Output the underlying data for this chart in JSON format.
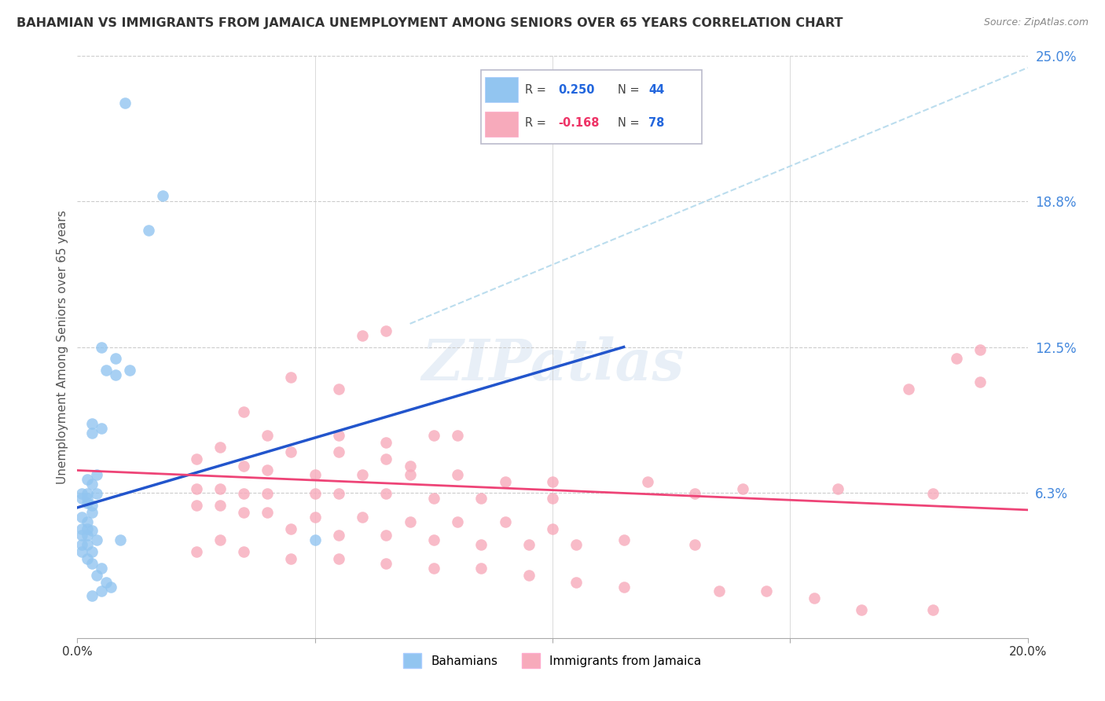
{
  "title": "BAHAMIAN VS IMMIGRANTS FROM JAMAICA UNEMPLOYMENT AMONG SENIORS OVER 65 YEARS CORRELATION CHART",
  "source": "Source: ZipAtlas.com",
  "ylabel": "Unemployment Among Seniors over 65 years",
  "xlim": [
    0.0,
    0.2
  ],
  "ylim": [
    0.0,
    0.25
  ],
  "yticks": [
    0.0,
    0.0625,
    0.125,
    0.1875,
    0.25
  ],
  "ytick_labels": [
    "",
    "6.3%",
    "12.5%",
    "18.8%",
    "25.0%"
  ],
  "xticks": [
    0.0,
    0.05,
    0.1,
    0.15,
    0.2
  ],
  "xtick_labels": [
    "0.0%",
    "",
    "",
    "",
    "20.0%"
  ],
  "bahamian_color": "#92C5F0",
  "jamaica_color": "#F7AABB",
  "trend_blue": "#2255CC",
  "trend_pink": "#EE4477",
  "trend_dashed_color": "#BBDDEE",
  "blue_line_x": [
    0.0,
    0.115
  ],
  "blue_line_y": [
    0.056,
    0.125
  ],
  "dashed_line_x": [
    0.07,
    0.2
  ],
  "dashed_line_y": [
    0.135,
    0.245
  ],
  "pink_line_x": [
    0.0,
    0.2
  ],
  "pink_line_y": [
    0.072,
    0.055
  ],
  "watermark_text": "ZIPatlas",
  "R_blue": "0.250",
  "N_blue": "44",
  "R_pink": "-0.168",
  "N_pink": "78",
  "bahamian_points": [
    [
      0.01,
      0.23
    ],
    [
      0.005,
      0.125
    ],
    [
      0.008,
      0.12
    ],
    [
      0.015,
      0.175
    ],
    [
      0.018,
      0.19
    ],
    [
      0.003,
      0.092
    ],
    [
      0.005,
      0.09
    ],
    [
      0.006,
      0.115
    ],
    [
      0.003,
      0.088
    ],
    [
      0.008,
      0.113
    ],
    [
      0.011,
      0.115
    ],
    [
      0.002,
      0.068
    ],
    [
      0.003,
      0.066
    ],
    [
      0.004,
      0.07
    ],
    [
      0.001,
      0.06
    ],
    [
      0.002,
      0.062
    ],
    [
      0.002,
      0.058
    ],
    [
      0.003,
      0.057
    ],
    [
      0.004,
      0.062
    ],
    [
      0.001,
      0.062
    ],
    [
      0.002,
      0.06
    ],
    [
      0.001,
      0.052
    ],
    [
      0.002,
      0.05
    ],
    [
      0.003,
      0.054
    ],
    [
      0.001,
      0.047
    ],
    [
      0.002,
      0.047
    ],
    [
      0.002,
      0.044
    ],
    [
      0.001,
      0.044
    ],
    [
      0.003,
      0.046
    ],
    [
      0.001,
      0.04
    ],
    [
      0.002,
      0.04
    ],
    [
      0.004,
      0.042
    ],
    [
      0.003,
      0.037
    ],
    [
      0.001,
      0.037
    ],
    [
      0.002,
      0.034
    ],
    [
      0.003,
      0.032
    ],
    [
      0.005,
      0.03
    ],
    [
      0.004,
      0.027
    ],
    [
      0.006,
      0.024
    ],
    [
      0.007,
      0.022
    ],
    [
      0.005,
      0.02
    ],
    [
      0.003,
      0.018
    ],
    [
      0.009,
      0.042
    ],
    [
      0.05,
      0.042
    ]
  ],
  "jamaica_points": [
    [
      0.06,
      0.13
    ],
    [
      0.065,
      0.132
    ],
    [
      0.045,
      0.112
    ],
    [
      0.055,
      0.107
    ],
    [
      0.035,
      0.097
    ],
    [
      0.04,
      0.087
    ],
    [
      0.055,
      0.087
    ],
    [
      0.065,
      0.084
    ],
    [
      0.075,
      0.087
    ],
    [
      0.08,
      0.087
    ],
    [
      0.03,
      0.082
    ],
    [
      0.045,
      0.08
    ],
    [
      0.055,
      0.08
    ],
    [
      0.065,
      0.077
    ],
    [
      0.07,
      0.074
    ],
    [
      0.025,
      0.077
    ],
    [
      0.035,
      0.074
    ],
    [
      0.04,
      0.072
    ],
    [
      0.05,
      0.07
    ],
    [
      0.06,
      0.07
    ],
    [
      0.07,
      0.07
    ],
    [
      0.08,
      0.07
    ],
    [
      0.09,
      0.067
    ],
    [
      0.1,
      0.067
    ],
    [
      0.12,
      0.067
    ],
    [
      0.025,
      0.064
    ],
    [
      0.03,
      0.064
    ],
    [
      0.035,
      0.062
    ],
    [
      0.04,
      0.062
    ],
    [
      0.05,
      0.062
    ],
    [
      0.055,
      0.062
    ],
    [
      0.065,
      0.062
    ],
    [
      0.075,
      0.06
    ],
    [
      0.085,
      0.06
    ],
    [
      0.1,
      0.06
    ],
    [
      0.13,
      0.062
    ],
    [
      0.14,
      0.064
    ],
    [
      0.025,
      0.057
    ],
    [
      0.03,
      0.057
    ],
    [
      0.035,
      0.054
    ],
    [
      0.04,
      0.054
    ],
    [
      0.05,
      0.052
    ],
    [
      0.06,
      0.052
    ],
    [
      0.07,
      0.05
    ],
    [
      0.08,
      0.05
    ],
    [
      0.09,
      0.05
    ],
    [
      0.1,
      0.047
    ],
    [
      0.045,
      0.047
    ],
    [
      0.055,
      0.044
    ],
    [
      0.065,
      0.044
    ],
    [
      0.075,
      0.042
    ],
    [
      0.085,
      0.04
    ],
    [
      0.095,
      0.04
    ],
    [
      0.105,
      0.04
    ],
    [
      0.115,
      0.042
    ],
    [
      0.13,
      0.04
    ],
    [
      0.025,
      0.037
    ],
    [
      0.035,
      0.037
    ],
    [
      0.045,
      0.034
    ],
    [
      0.055,
      0.034
    ],
    [
      0.065,
      0.032
    ],
    [
      0.075,
      0.03
    ],
    [
      0.085,
      0.03
    ],
    [
      0.095,
      0.027
    ],
    [
      0.105,
      0.024
    ],
    [
      0.115,
      0.022
    ],
    [
      0.135,
      0.02
    ],
    [
      0.145,
      0.02
    ],
    [
      0.155,
      0.017
    ],
    [
      0.165,
      0.012
    ],
    [
      0.18,
      0.012
    ],
    [
      0.18,
      0.062
    ],
    [
      0.16,
      0.064
    ],
    [
      0.19,
      0.11
    ],
    [
      0.185,
      0.12
    ],
    [
      0.19,
      0.124
    ],
    [
      0.175,
      0.107
    ],
    [
      0.03,
      0.042
    ]
  ]
}
